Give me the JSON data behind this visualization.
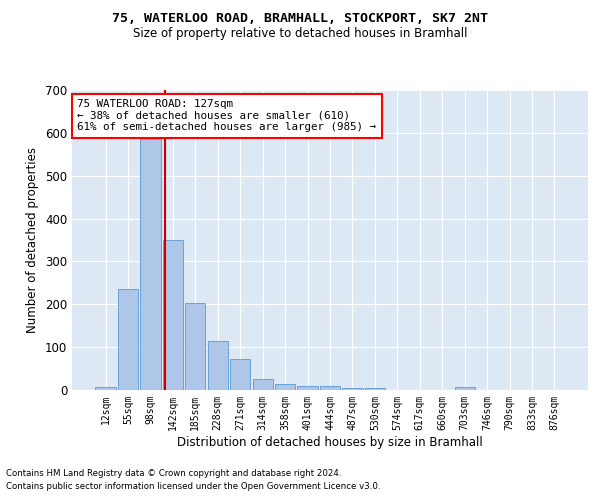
{
  "title_line1": "75, WATERLOO ROAD, BRAMHALL, STOCKPORT, SK7 2NT",
  "title_line2": "Size of property relative to detached houses in Bramhall",
  "xlabel": "Distribution of detached houses by size in Bramhall",
  "ylabel": "Number of detached properties",
  "categories": [
    "12sqm",
    "55sqm",
    "98sqm",
    "142sqm",
    "185sqm",
    "228sqm",
    "271sqm",
    "314sqm",
    "358sqm",
    "401sqm",
    "444sqm",
    "487sqm",
    "530sqm",
    "574sqm",
    "617sqm",
    "660sqm",
    "703sqm",
    "746sqm",
    "790sqm",
    "833sqm",
    "876sqm"
  ],
  "values": [
    8,
    235,
    585,
    350,
    202,
    115,
    73,
    25,
    15,
    10,
    10,
    5,
    5,
    0,
    0,
    0,
    7,
    0,
    0,
    0,
    0
  ],
  "bar_color": "#aec6e8",
  "bar_edge_color": "#5b9bd5",
  "background_color": "#dde8f5",
  "grid_color": "#ffffff",
  "annotation_text": "75 WATERLOO ROAD: 127sqm\n← 38% of detached houses are smaller (610)\n61% of semi-detached houses are larger (985) →",
  "vline_color": "#cc0000",
  "ylim": [
    0,
    700
  ],
  "yticks": [
    0,
    100,
    200,
    300,
    400,
    500,
    600,
    700
  ],
  "footnote1": "Contains HM Land Registry data © Crown copyright and database right 2024.",
  "footnote2": "Contains public sector information licensed under the Open Government Licence v3.0."
}
